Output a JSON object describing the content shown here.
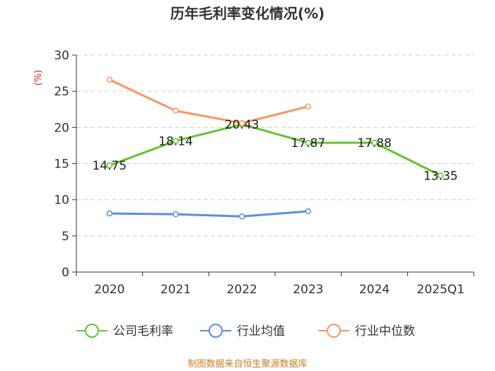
{
  "chart_data": {
    "type": "line",
    "title": "历年毛利率变化情况(%)",
    "ylabel": "(%)",
    "xlabel": "",
    "categories": [
      "2020",
      "2021",
      "2022",
      "2023",
      "2024",
      "2025Q1"
    ],
    "ylim": [
      0,
      30
    ],
    "yticks": [
      0,
      5,
      10,
      15,
      20,
      25,
      30
    ],
    "grid": true,
    "legend_position": "bottom",
    "series": [
      {
        "name": "公司毛利率",
        "color": "#5fc62e",
        "values": [
          14.75,
          18.14,
          20.43,
          17.87,
          17.88,
          13.35
        ],
        "labels": [
          "14.75",
          "18.14",
          "20.43",
          "17.87",
          "17.88",
          "13.35"
        ]
      },
      {
        "name": "行业均值",
        "color": "#5b8de6",
        "values": [
          8.1,
          8.0,
          7.7,
          8.4,
          null,
          null
        ]
      },
      {
        "name": "行业中位数",
        "color": "#f79661",
        "values": [
          26.6,
          22.3,
          20.6,
          22.9,
          null,
          null
        ]
      }
    ]
  },
  "footer": {
    "source": "制图数据来自恒生聚源数据库"
  }
}
